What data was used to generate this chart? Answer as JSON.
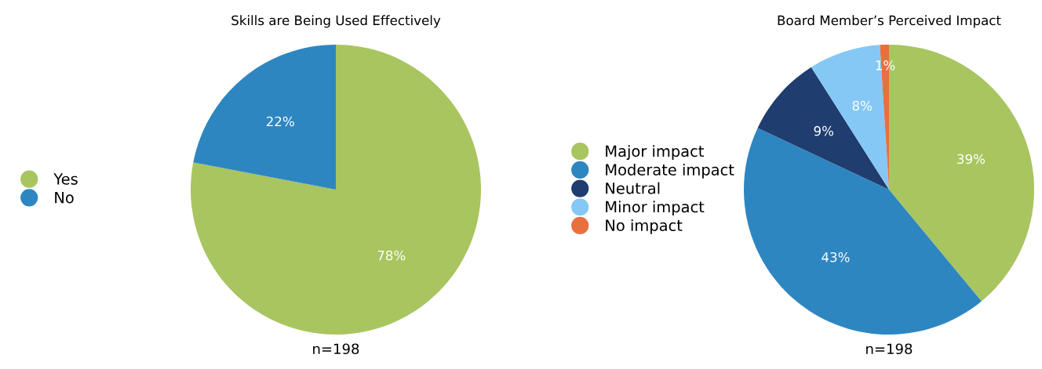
{
  "chart_data": [
    {
      "type": "pie",
      "title": "Skills are Being Used Effectively",
      "categories": [
        "Yes",
        "No"
      ],
      "values": [
        78,
        22
      ],
      "colors": [
        "#a8c560",
        "#2e86c1"
      ],
      "value_labels": [
        "78%",
        "22%"
      ],
      "legend": "left",
      "annotations": [
        "n=198"
      ]
    },
    {
      "type": "pie",
      "title": "Board Member’s Perceived Impact",
      "categories": [
        "Major impact",
        "Moderate impact",
        "Neutral",
        "Minor impact",
        "No impact"
      ],
      "values": [
        39,
        43,
        9,
        8,
        1
      ],
      "colors": [
        "#a8c560",
        "#2e86c1",
        "#1f3d6e",
        "#85c8f5",
        "#e8703f"
      ],
      "value_labels": [
        "39%",
        "43%",
        "9%",
        "8%",
        "1%"
      ],
      "legend": "left",
      "annotations": [
        "n=198"
      ]
    }
  ]
}
